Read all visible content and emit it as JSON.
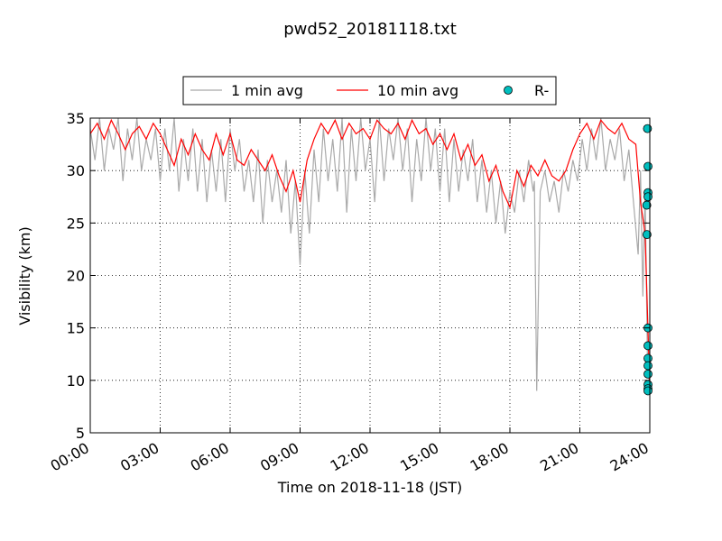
{
  "chart_data": {
    "type": "line",
    "title": "pwd52_20181118.txt",
    "xlabel": "Time on 2018-11-18 (JST)",
    "ylabel": "Visibility (km)",
    "xlim_hours": [
      0,
      24
    ],
    "ylim": [
      5,
      35
    ],
    "x_ticks": [
      {
        "hour": 0,
        "label": "00:00"
      },
      {
        "hour": 3,
        "label": "03:00"
      },
      {
        "hour": 6,
        "label": "06:00"
      },
      {
        "hour": 9,
        "label": "09:00"
      },
      {
        "hour": 12,
        "label": "12:00"
      },
      {
        "hour": 15,
        "label": "15:00"
      },
      {
        "hour": 18,
        "label": "18:00"
      },
      {
        "hour": 21,
        "label": "21:00"
      },
      {
        "hour": 24,
        "label": "24:00"
      }
    ],
    "y_ticks": [
      5,
      10,
      15,
      20,
      25,
      30,
      35
    ],
    "grid": true,
    "legend_position": "top-center",
    "colors": {
      "avg1": "#a9a9a9",
      "avg10": "#ff0000",
      "rain": "#00bfbf"
    },
    "series": [
      {
        "name": "1 min avg",
        "style": "line",
        "x_hours": [
          0,
          0.2,
          0.4,
          0.6,
          0.8,
          1,
          1.2,
          1.4,
          1.6,
          1.8,
          2,
          2.2,
          2.4,
          2.6,
          2.8,
          3,
          3.2,
          3.4,
          3.6,
          3.8,
          4,
          4.2,
          4.4,
          4.6,
          4.8,
          5,
          5.2,
          5.4,
          5.6,
          5.8,
          6,
          6.2,
          6.4,
          6.6,
          6.8,
          7,
          7.2,
          7.4,
          7.6,
          7.8,
          8,
          8.2,
          8.4,
          8.6,
          8.8,
          9,
          9.2,
          9.4,
          9.6,
          9.8,
          10,
          10.2,
          10.4,
          10.6,
          10.8,
          11,
          11.2,
          11.4,
          11.6,
          11.8,
          12,
          12.2,
          12.4,
          12.6,
          12.8,
          13,
          13.2,
          13.4,
          13.6,
          13.8,
          14,
          14.2,
          14.4,
          14.6,
          14.8,
          15,
          15.2,
          15.4,
          15.6,
          15.8,
          16,
          16.2,
          16.4,
          16.6,
          16.8,
          17,
          17.2,
          17.4,
          17.6,
          17.8,
          18,
          18.2,
          18.4,
          18.6,
          18.8,
          19,
          19.05,
          19.15,
          19.3,
          19.5,
          19.7,
          19.9,
          20.1,
          20.3,
          20.5,
          20.7,
          20.9,
          21.1,
          21.3,
          21.5,
          21.7,
          21.9,
          22.1,
          22.3,
          22.5,
          22.7,
          22.9,
          23.1,
          23.3,
          23.5,
          23.6,
          23.7,
          23.8,
          23.9,
          24
        ],
        "y": [
          34,
          31,
          35,
          30,
          34,
          32,
          35,
          29,
          34,
          31,
          35,
          30,
          33,
          31,
          34,
          29,
          34,
          30,
          35,
          28,
          33,
          29,
          34,
          28,
          33,
          27,
          32,
          28,
          33,
          27,
          34,
          30,
          33,
          28,
          31,
          27,
          32,
          25,
          31,
          27,
          30,
          26,
          31,
          24,
          29,
          21,
          30,
          24,
          32,
          27,
          34,
          29,
          33,
          28,
          35,
          26,
          34,
          29,
          35,
          30,
          33,
          27,
          35,
          29,
          34,
          31,
          35,
          30,
          34,
          27,
          33,
          29,
          35,
          30,
          34,
          28,
          34,
          27,
          33,
          28,
          32,
          29,
          33,
          27,
          31,
          26,
          30,
          25,
          29,
          24,
          28,
          26,
          30,
          27,
          31,
          28,
          29,
          9,
          28,
          30,
          27,
          29,
          26,
          30,
          28,
          31,
          29,
          33,
          30,
          34,
          31,
          35,
          30,
          33,
          31,
          34,
          29,
          32,
          27,
          22,
          30,
          18,
          28,
          12,
          9
        ],
        "values_note": ""
      },
      {
        "name": "10 min avg",
        "style": "line",
        "x_hours": [
          0,
          0.3,
          0.6,
          0.9,
          1.2,
          1.5,
          1.8,
          2.1,
          2.4,
          2.7,
          3,
          3.3,
          3.6,
          3.9,
          4.2,
          4.5,
          4.8,
          5.1,
          5.4,
          5.7,
          6,
          6.3,
          6.6,
          6.9,
          7.2,
          7.5,
          7.8,
          8.1,
          8.4,
          8.7,
          9,
          9.3,
          9.6,
          9.9,
          10.2,
          10.5,
          10.8,
          11.1,
          11.4,
          11.7,
          12,
          12.3,
          12.6,
          12.9,
          13.2,
          13.5,
          13.8,
          14.1,
          14.4,
          14.7,
          15,
          15.3,
          15.6,
          15.9,
          16.2,
          16.5,
          16.8,
          17.1,
          17.4,
          17.7,
          18,
          18.3,
          18.6,
          18.9,
          19.2,
          19.5,
          19.8,
          20.1,
          20.4,
          20.7,
          21,
          21.3,
          21.6,
          21.9,
          22.2,
          22.5,
          22.8,
          23.1,
          23.4,
          23.6,
          23.8,
          24
        ],
        "y": [
          33.5,
          34.5,
          33,
          34.8,
          33.5,
          32,
          33.5,
          34.2,
          33,
          34.5,
          33.5,
          32,
          30.5,
          33,
          31.5,
          33.5,
          32,
          31,
          33.5,
          31.5,
          33.5,
          31,
          30.5,
          32,
          31,
          30,
          31.5,
          29.5,
          28,
          30,
          27,
          31,
          33,
          34.5,
          33.5,
          34.8,
          33,
          34.5,
          33.5,
          34,
          33,
          34.8,
          34,
          33.5,
          34.5,
          33,
          34.8,
          33.5,
          34,
          32.5,
          33.5,
          32,
          33.5,
          31,
          32.5,
          30.5,
          31.5,
          29,
          30.5,
          28,
          26.5,
          30,
          28.5,
          30.5,
          29.5,
          31,
          29.5,
          29,
          30,
          32,
          33.5,
          34.5,
          33,
          34.8,
          34,
          33.5,
          34.5,
          33,
          32.5,
          27,
          24,
          9
        ]
      },
      {
        "name": "R-",
        "style": "markers",
        "x_hours": [
          23.9,
          23.95,
          24.05,
          23.87,
          23.88,
          24.35,
          24.33,
          24.38,
          24.4,
          24.42,
          24.43,
          24.44,
          24.45,
          24.45
        ],
        "y": [
          34,
          30.4,
          27.9,
          26.7,
          23.9,
          27.5,
          15,
          13.3,
          12.1,
          11.4,
          10.6,
          9.6,
          9.2,
          9.0
        ]
      }
    ]
  }
}
